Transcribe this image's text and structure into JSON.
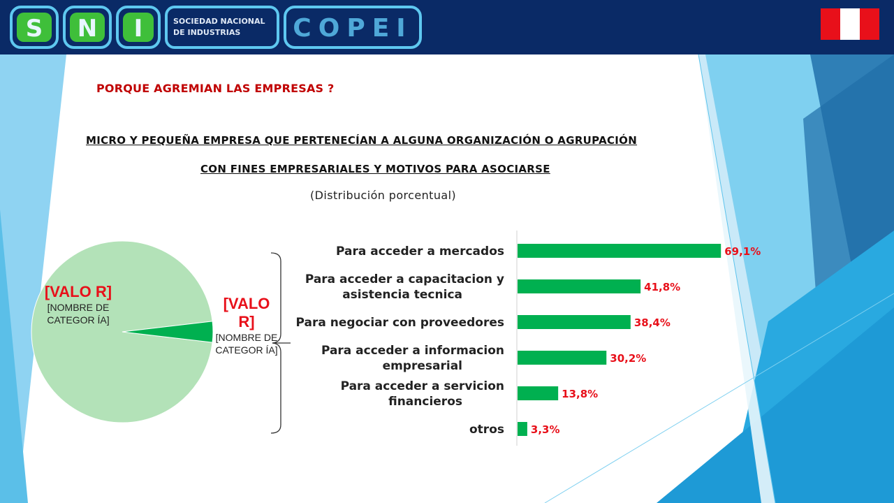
{
  "logo": {
    "letters": [
      "S",
      "N",
      "I"
    ],
    "tagline_1": "SOCIEDAD NACIONAL",
    "tagline_2": "DE INDUSTRIAS",
    "brand": "COPEI"
  },
  "colors": {
    "header": "#0a2a66",
    "bar": "#00b050",
    "pie_light": "#b3e2b8",
    "pie_dark": "#00b050",
    "value_red": "#e8101a",
    "title_red": "#c00000"
  },
  "chart_data": [
    {
      "type": "pie",
      "slices": [
        {
          "label": "[NOMBRE DE CATEGOR ÍA]",
          "value_label": "[VALO R]",
          "fraction": 0.963
        },
        {
          "label": "[NOMBRE DE CATEGOR ÍA]",
          "value_label": "[VALO R]",
          "fraction": 0.037
        }
      ]
    },
    {
      "type": "bar",
      "orientation": "horizontal",
      "title": "PORQUE AGREMIAN LAS EMPRESAS ?",
      "subtitle_1": "MICRO Y PEQUEÑA EMPRESA QUE PERTENECÍAN A ALGUNA ORGANIZACIÓN O AGRUPACIÓN",
      "subtitle_2": "CON FINES EMPRESARIALES Y MOTIVOS PARA ASOCIARSE",
      "subtitle_3": "(Distribución porcentual)",
      "categories": [
        [
          "Para acceder a mercados"
        ],
        [
          "Para acceder a capacitacion y",
          "asistencia tecnica"
        ],
        [
          "Para negociar con proveedores"
        ],
        [
          "Para acceder a informacion",
          "empresarial"
        ],
        [
          "Para acceder a servicion",
          "financieros"
        ],
        [
          "otros"
        ]
      ],
      "values": [
        69.1,
        41.8,
        38.4,
        30.2,
        13.8,
        3.3
      ],
      "value_labels": [
        "69,1%",
        "41,8%",
        "38,4%",
        "30,2%",
        "13,8%",
        "3,3%"
      ],
      "xlim": [
        0,
        70
      ],
      "grid": false,
      "legend": "none"
    }
  ]
}
